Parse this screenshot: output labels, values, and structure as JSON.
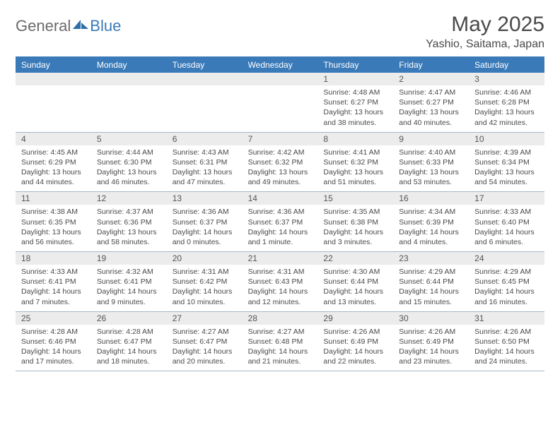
{
  "brand": {
    "general": "General",
    "blue": "Blue"
  },
  "header": {
    "title": "May 2025",
    "location": "Yashio, Saitama, Japan"
  },
  "colors": {
    "accent": "#3a7ab8",
    "header_bg": "#3a7ab8",
    "daynum_bg": "#ececec",
    "border": "#a8b8c8",
    "text": "#4a4a4a",
    "logo_gray": "#6a6a6a"
  },
  "weekdays": [
    "Sunday",
    "Monday",
    "Tuesday",
    "Wednesday",
    "Thursday",
    "Friday",
    "Saturday"
  ],
  "weeks": [
    [
      {
        "num": "",
        "sunrise": "",
        "sunset": "",
        "daylight1": "",
        "daylight2": ""
      },
      {
        "num": "",
        "sunrise": "",
        "sunset": "",
        "daylight1": "",
        "daylight2": ""
      },
      {
        "num": "",
        "sunrise": "",
        "sunset": "",
        "daylight1": "",
        "daylight2": ""
      },
      {
        "num": "",
        "sunrise": "",
        "sunset": "",
        "daylight1": "",
        "daylight2": ""
      },
      {
        "num": "1",
        "sunrise": "Sunrise: 4:48 AM",
        "sunset": "Sunset: 6:27 PM",
        "daylight1": "Daylight: 13 hours",
        "daylight2": "and 38 minutes."
      },
      {
        "num": "2",
        "sunrise": "Sunrise: 4:47 AM",
        "sunset": "Sunset: 6:27 PM",
        "daylight1": "Daylight: 13 hours",
        "daylight2": "and 40 minutes."
      },
      {
        "num": "3",
        "sunrise": "Sunrise: 4:46 AM",
        "sunset": "Sunset: 6:28 PM",
        "daylight1": "Daylight: 13 hours",
        "daylight2": "and 42 minutes."
      }
    ],
    [
      {
        "num": "4",
        "sunrise": "Sunrise: 4:45 AM",
        "sunset": "Sunset: 6:29 PM",
        "daylight1": "Daylight: 13 hours",
        "daylight2": "and 44 minutes."
      },
      {
        "num": "5",
        "sunrise": "Sunrise: 4:44 AM",
        "sunset": "Sunset: 6:30 PM",
        "daylight1": "Daylight: 13 hours",
        "daylight2": "and 46 minutes."
      },
      {
        "num": "6",
        "sunrise": "Sunrise: 4:43 AM",
        "sunset": "Sunset: 6:31 PM",
        "daylight1": "Daylight: 13 hours",
        "daylight2": "and 47 minutes."
      },
      {
        "num": "7",
        "sunrise": "Sunrise: 4:42 AM",
        "sunset": "Sunset: 6:32 PM",
        "daylight1": "Daylight: 13 hours",
        "daylight2": "and 49 minutes."
      },
      {
        "num": "8",
        "sunrise": "Sunrise: 4:41 AM",
        "sunset": "Sunset: 6:32 PM",
        "daylight1": "Daylight: 13 hours",
        "daylight2": "and 51 minutes."
      },
      {
        "num": "9",
        "sunrise": "Sunrise: 4:40 AM",
        "sunset": "Sunset: 6:33 PM",
        "daylight1": "Daylight: 13 hours",
        "daylight2": "and 53 minutes."
      },
      {
        "num": "10",
        "sunrise": "Sunrise: 4:39 AM",
        "sunset": "Sunset: 6:34 PM",
        "daylight1": "Daylight: 13 hours",
        "daylight2": "and 54 minutes."
      }
    ],
    [
      {
        "num": "11",
        "sunrise": "Sunrise: 4:38 AM",
        "sunset": "Sunset: 6:35 PM",
        "daylight1": "Daylight: 13 hours",
        "daylight2": "and 56 minutes."
      },
      {
        "num": "12",
        "sunrise": "Sunrise: 4:37 AM",
        "sunset": "Sunset: 6:36 PM",
        "daylight1": "Daylight: 13 hours",
        "daylight2": "and 58 minutes."
      },
      {
        "num": "13",
        "sunrise": "Sunrise: 4:36 AM",
        "sunset": "Sunset: 6:37 PM",
        "daylight1": "Daylight: 14 hours",
        "daylight2": "and 0 minutes."
      },
      {
        "num": "14",
        "sunrise": "Sunrise: 4:36 AM",
        "sunset": "Sunset: 6:37 PM",
        "daylight1": "Daylight: 14 hours",
        "daylight2": "and 1 minute."
      },
      {
        "num": "15",
        "sunrise": "Sunrise: 4:35 AM",
        "sunset": "Sunset: 6:38 PM",
        "daylight1": "Daylight: 14 hours",
        "daylight2": "and 3 minutes."
      },
      {
        "num": "16",
        "sunrise": "Sunrise: 4:34 AM",
        "sunset": "Sunset: 6:39 PM",
        "daylight1": "Daylight: 14 hours",
        "daylight2": "and 4 minutes."
      },
      {
        "num": "17",
        "sunrise": "Sunrise: 4:33 AM",
        "sunset": "Sunset: 6:40 PM",
        "daylight1": "Daylight: 14 hours",
        "daylight2": "and 6 minutes."
      }
    ],
    [
      {
        "num": "18",
        "sunrise": "Sunrise: 4:33 AM",
        "sunset": "Sunset: 6:41 PM",
        "daylight1": "Daylight: 14 hours",
        "daylight2": "and 7 minutes."
      },
      {
        "num": "19",
        "sunrise": "Sunrise: 4:32 AM",
        "sunset": "Sunset: 6:41 PM",
        "daylight1": "Daylight: 14 hours",
        "daylight2": "and 9 minutes."
      },
      {
        "num": "20",
        "sunrise": "Sunrise: 4:31 AM",
        "sunset": "Sunset: 6:42 PM",
        "daylight1": "Daylight: 14 hours",
        "daylight2": "and 10 minutes."
      },
      {
        "num": "21",
        "sunrise": "Sunrise: 4:31 AM",
        "sunset": "Sunset: 6:43 PM",
        "daylight1": "Daylight: 14 hours",
        "daylight2": "and 12 minutes."
      },
      {
        "num": "22",
        "sunrise": "Sunrise: 4:30 AM",
        "sunset": "Sunset: 6:44 PM",
        "daylight1": "Daylight: 14 hours",
        "daylight2": "and 13 minutes."
      },
      {
        "num": "23",
        "sunrise": "Sunrise: 4:29 AM",
        "sunset": "Sunset: 6:44 PM",
        "daylight1": "Daylight: 14 hours",
        "daylight2": "and 15 minutes."
      },
      {
        "num": "24",
        "sunrise": "Sunrise: 4:29 AM",
        "sunset": "Sunset: 6:45 PM",
        "daylight1": "Daylight: 14 hours",
        "daylight2": "and 16 minutes."
      }
    ],
    [
      {
        "num": "25",
        "sunrise": "Sunrise: 4:28 AM",
        "sunset": "Sunset: 6:46 PM",
        "daylight1": "Daylight: 14 hours",
        "daylight2": "and 17 minutes."
      },
      {
        "num": "26",
        "sunrise": "Sunrise: 4:28 AM",
        "sunset": "Sunset: 6:47 PM",
        "daylight1": "Daylight: 14 hours",
        "daylight2": "and 18 minutes."
      },
      {
        "num": "27",
        "sunrise": "Sunrise: 4:27 AM",
        "sunset": "Sunset: 6:47 PM",
        "daylight1": "Daylight: 14 hours",
        "daylight2": "and 20 minutes."
      },
      {
        "num": "28",
        "sunrise": "Sunrise: 4:27 AM",
        "sunset": "Sunset: 6:48 PM",
        "daylight1": "Daylight: 14 hours",
        "daylight2": "and 21 minutes."
      },
      {
        "num": "29",
        "sunrise": "Sunrise: 4:26 AM",
        "sunset": "Sunset: 6:49 PM",
        "daylight1": "Daylight: 14 hours",
        "daylight2": "and 22 minutes."
      },
      {
        "num": "30",
        "sunrise": "Sunrise: 4:26 AM",
        "sunset": "Sunset: 6:49 PM",
        "daylight1": "Daylight: 14 hours",
        "daylight2": "and 23 minutes."
      },
      {
        "num": "31",
        "sunrise": "Sunrise: 4:26 AM",
        "sunset": "Sunset: 6:50 PM",
        "daylight1": "Daylight: 14 hours",
        "daylight2": "and 24 minutes."
      }
    ]
  ]
}
